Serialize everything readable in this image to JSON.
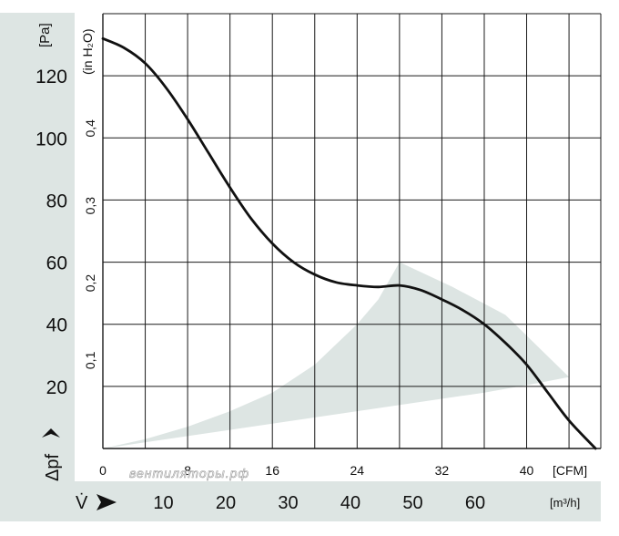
{
  "chart_data": {
    "type": "line",
    "title": "",
    "series": [
      {
        "name": "pressure-curve",
        "x_unit": "CFM",
        "x": [
          0,
          2,
          4,
          6,
          8,
          10,
          12,
          14,
          16,
          18,
          20,
          22,
          24,
          26,
          28,
          30,
          32,
          34,
          36,
          38,
          40,
          42,
          44,
          46.5
        ],
        "y": [
          132,
          129,
          124,
          116,
          106,
          95,
          84,
          74,
          66,
          60,
          56,
          53.5,
          52.5,
          52,
          52.5,
          51,
          48,
          44.5,
          40,
          34,
          27,
          18,
          9,
          0
        ]
      }
    ],
    "operating_area": {
      "name": "operating-range",
      "x": [
        0,
        4,
        8,
        12,
        16,
        20,
        24,
        26,
        28,
        33,
        38,
        44,
        41,
        36,
        30,
        24,
        16,
        8,
        0
      ],
      "y": [
        0,
        3,
        7,
        12,
        18,
        27,
        40,
        48,
        60,
        52,
        43,
        23,
        21,
        18,
        15,
        12,
        8,
        4,
        0
      ],
      "color": "#dde5e3"
    },
    "xaxis": {
      "label": "[CFM]",
      "range": [
        0,
        47
      ],
      "ticks": [
        0,
        8,
        16,
        24,
        32,
        40
      ],
      "tick_labels": [
        "0",
        "8",
        "16",
        "24",
        "32",
        "40"
      ],
      "grid_step": 4
    },
    "xaxis2": {
      "label": "[m³/h]",
      "ticks": [
        10,
        20,
        30,
        40,
        50,
        60
      ],
      "tick_labels": [
        "10",
        "20",
        "30",
        "40",
        "50",
        "60"
      ],
      "symbol": "V̇"
    },
    "yaxis": {
      "label": "[Pa]",
      "range": [
        0,
        140
      ],
      "ticks": [
        20,
        40,
        60,
        80,
        100,
        120
      ],
      "tick_labels": [
        "20",
        "40",
        "60",
        "80",
        "100",
        "120"
      ],
      "grid_step": 20,
      "symbol": "Δpf"
    },
    "yaxis2": {
      "label": "(in H₂O)",
      "ticks": [
        0.1,
        0.2,
        0.3,
        0.4
      ],
      "tick_labels": [
        "0,1",
        "0,2",
        "0,3",
        "0,4"
      ]
    },
    "watermark": "вентиляторы.рф",
    "colors": {
      "band": "#dde5e3",
      "grid": "#1a1a1a",
      "curve": "#111111",
      "text": "#111111",
      "background": "#ffffff"
    }
  }
}
